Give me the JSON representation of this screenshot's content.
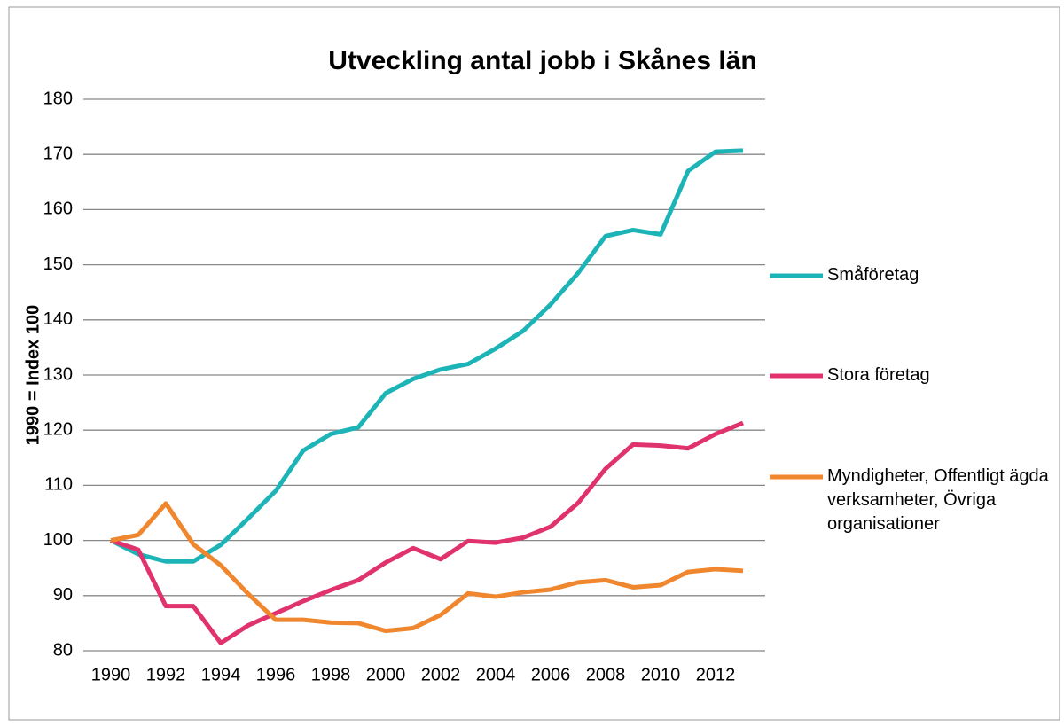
{
  "chart_data": {
    "type": "line",
    "title": "Utveckling antal jobb i Skånes län",
    "ylabel": "1990 = Index 100",
    "x": [
      1990,
      1991,
      1992,
      1993,
      1994,
      1995,
      1996,
      1997,
      1998,
      1999,
      2000,
      2001,
      2002,
      2003,
      2004,
      2005,
      2006,
      2007,
      2008,
      2009,
      2010,
      2011,
      2012,
      2013
    ],
    "xlim": [
      1989,
      2014
    ],
    "xticks": [
      1990,
      1992,
      1994,
      1996,
      1998,
      2000,
      2002,
      2004,
      2006,
      2008,
      2010,
      2012
    ],
    "ylim": [
      80,
      180
    ],
    "yticks": [
      80,
      90,
      100,
      110,
      120,
      130,
      140,
      150,
      160,
      170,
      180
    ],
    "grid": true,
    "legend": "right",
    "series": [
      {
        "name": "Småföretag",
        "color": "#1db4b8",
        "values": [
          100,
          97.5,
          96.2,
          96.2,
          99.2,
          104,
          109,
          116.3,
          119.3,
          120.5,
          126.7,
          129.3,
          131,
          132,
          134.8,
          138,
          142.8,
          148.5,
          155.2,
          156.3,
          155.5,
          167,
          170.5,
          170.7
        ]
      },
      {
        "name": "Stora företag",
        "color": "#e0336e",
        "values": [
          100,
          98.3,
          88.1,
          88.1,
          81.4,
          84.6,
          86.8,
          89,
          91,
          92.8,
          96,
          98.6,
          96.6,
          99.9,
          99.6,
          100.5,
          102.5,
          106.8,
          113,
          117.4,
          117.2,
          116.7,
          119.3,
          121.3
        ]
      },
      {
        "name": "Myndigheter, Offentligt ägda verksamheter, Övriga organisationer",
        "color": "#f0862d",
        "values": [
          100,
          101,
          106.7,
          99.3,
          95.5,
          90.3,
          85.6,
          85.6,
          85.1,
          85,
          83.6,
          84.1,
          86.5,
          90.4,
          89.8,
          90.6,
          91.1,
          92.4,
          92.8,
          91.5,
          91.9,
          94.3,
          94.8,
          94.5
        ]
      }
    ]
  }
}
